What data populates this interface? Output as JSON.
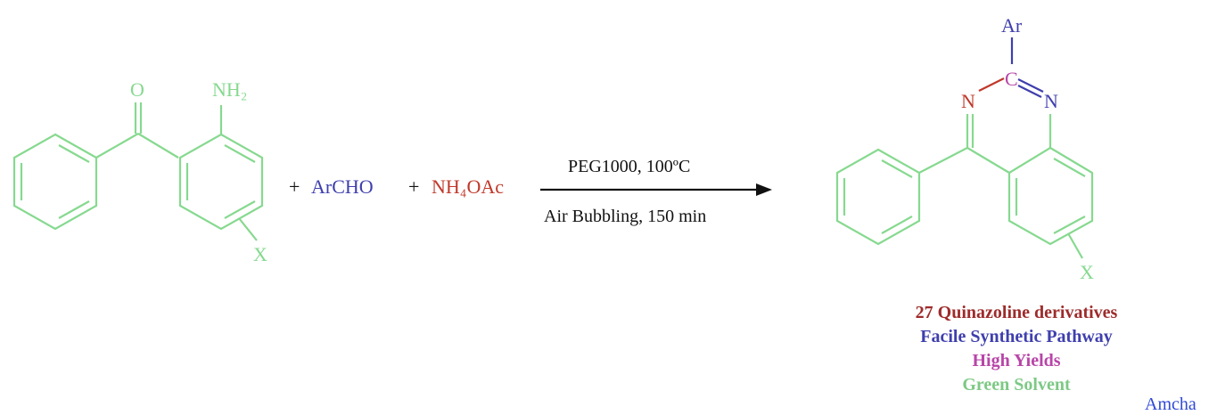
{
  "colors": {
    "green": "#86d98f",
    "blue": "#3f3fae",
    "red": "#c0392b",
    "maroon": "#9e2b2b",
    "magenta": "#b845a8",
    "black": "#111111"
  },
  "reactant": {
    "oxygen": "O",
    "amine": "NH₂",
    "substituent": "X"
  },
  "reagents": {
    "plus1": "+",
    "aldehyde": "ArCHO",
    "plus2": "+",
    "ammonium": "NH₄OAc"
  },
  "conditions": {
    "top": "PEG1000, 100ºC",
    "bottom": "Air Bubbling, 150 min"
  },
  "product": {
    "aryl": "Ar",
    "carbon": "C",
    "nitrogen_left": "N",
    "nitrogen_right": "N",
    "substituent": "X"
  },
  "summary": {
    "line1": "27 Quinazoline derivatives",
    "line2": "Facile Synthetic Pathway",
    "line3": "High Yields",
    "line4": "Green Solvent"
  },
  "credit": "Amcha"
}
